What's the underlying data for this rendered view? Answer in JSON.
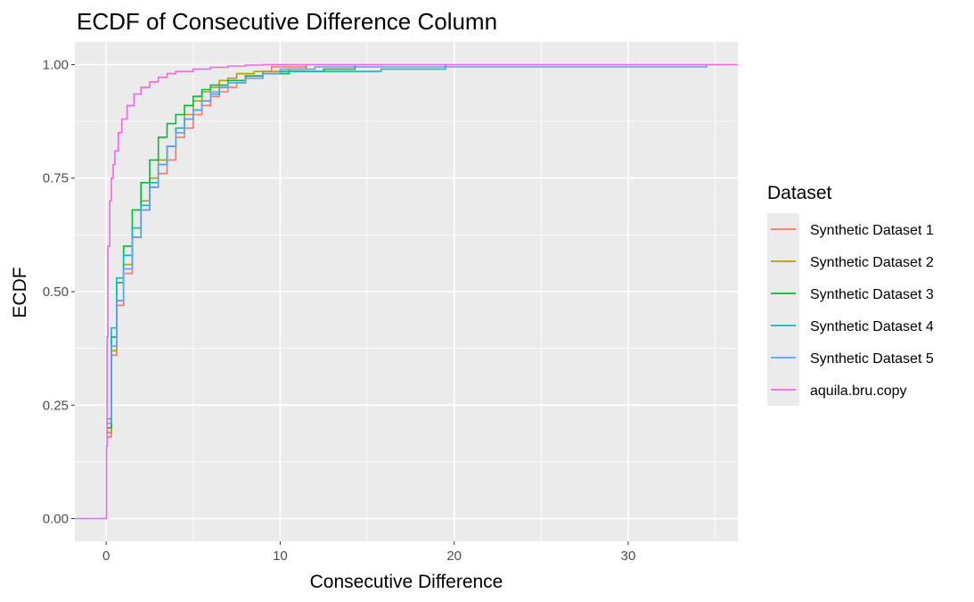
{
  "chart_data": {
    "type": "line",
    "subtype": "ecdf-step",
    "title": "ECDF of Consecutive Difference Column",
    "xlabel": "Consecutive Difference",
    "ylabel": "ECDF",
    "xlim": [
      -1.8,
      36.3
    ],
    "ylim": [
      -0.05,
      1.05
    ],
    "x_ticks": [
      0,
      10,
      20,
      30
    ],
    "x_tick_labels": [
      "0",
      "10",
      "20",
      "30"
    ],
    "y_ticks": [
      0,
      0.25,
      0.5,
      0.75,
      1.0
    ],
    "y_tick_labels": [
      "0.00",
      "0.25",
      "0.50",
      "0.75",
      "1.00"
    ],
    "grid": true,
    "panel_background": "#ebebeb",
    "legend": {
      "title": "Dataset",
      "position": "right"
    },
    "series": [
      {
        "name": "Synthetic Dataset 1",
        "color": "#F8766D",
        "points": [
          [
            0,
            0.18
          ],
          [
            0.3,
            0.36
          ],
          [
            0.6,
            0.47
          ],
          [
            1.0,
            0.54
          ],
          [
            1.5,
            0.62
          ],
          [
            2.0,
            0.68
          ],
          [
            2.5,
            0.73
          ],
          [
            3.0,
            0.76
          ],
          [
            3.5,
            0.79
          ],
          [
            4.0,
            0.84
          ],
          [
            4.5,
            0.86
          ],
          [
            5.0,
            0.89
          ],
          [
            5.5,
            0.91
          ],
          [
            6.0,
            0.93
          ],
          [
            6.5,
            0.94
          ],
          [
            7.0,
            0.95
          ],
          [
            7.5,
            0.96
          ],
          [
            8.0,
            0.975
          ],
          [
            9.0,
            0.985
          ],
          [
            9.5,
            0.995
          ],
          [
            11.5,
            1.0
          ]
        ]
      },
      {
        "name": "Synthetic Dataset 2",
        "color": "#B79F00",
        "points": [
          [
            0,
            0.19
          ],
          [
            0.3,
            0.37
          ],
          [
            0.6,
            0.48
          ],
          [
            1.0,
            0.56
          ],
          [
            1.5,
            0.64
          ],
          [
            2.0,
            0.7
          ],
          [
            2.5,
            0.75
          ],
          [
            3.0,
            0.79
          ],
          [
            3.5,
            0.82
          ],
          [
            4.0,
            0.86
          ],
          [
            4.5,
            0.89
          ],
          [
            5.0,
            0.92
          ],
          [
            5.5,
            0.94
          ],
          [
            6.0,
            0.95
          ],
          [
            6.5,
            0.965
          ],
          [
            7.0,
            0.97
          ],
          [
            7.5,
            0.98
          ],
          [
            8.5,
            0.985
          ],
          [
            10.5,
            0.99
          ],
          [
            11.5,
            1.0
          ]
        ]
      },
      {
        "name": "Synthetic Dataset 3",
        "color": "#00BA38",
        "points": [
          [
            0,
            0.2
          ],
          [
            0.3,
            0.4
          ],
          [
            0.6,
            0.52
          ],
          [
            1.0,
            0.6
          ],
          [
            1.5,
            0.68
          ],
          [
            2.0,
            0.74
          ],
          [
            2.5,
            0.79
          ],
          [
            3.0,
            0.84
          ],
          [
            3.5,
            0.87
          ],
          [
            4.0,
            0.89
          ],
          [
            4.5,
            0.91
          ],
          [
            5.0,
            0.93
          ],
          [
            5.5,
            0.945
          ],
          [
            6.0,
            0.955
          ],
          [
            7.0,
            0.965
          ],
          [
            8.0,
            0.975
          ],
          [
            9.0,
            0.98
          ],
          [
            10.5,
            0.985
          ],
          [
            12.5,
            0.99
          ],
          [
            14.3,
            1.0
          ]
        ]
      },
      {
        "name": "Synthetic Dataset 4",
        "color": "#00BFC4",
        "points": [
          [
            0,
            0.22
          ],
          [
            0.3,
            0.42
          ],
          [
            0.6,
            0.53
          ],
          [
            1.0,
            0.58
          ],
          [
            1.5,
            0.64
          ],
          [
            2.0,
            0.69
          ],
          [
            2.5,
            0.74
          ],
          [
            3.0,
            0.78
          ],
          [
            3.5,
            0.82
          ],
          [
            4.0,
            0.86
          ],
          [
            4.5,
            0.88
          ],
          [
            5.0,
            0.9
          ],
          [
            5.5,
            0.92
          ],
          [
            6.0,
            0.935
          ],
          [
            6.5,
            0.95
          ],
          [
            7.0,
            0.96
          ],
          [
            8.0,
            0.97
          ],
          [
            9.0,
            0.98
          ],
          [
            10.0,
            0.985
          ],
          [
            15.8,
            0.99
          ],
          [
            19.5,
            1.0
          ]
        ]
      },
      {
        "name": "Synthetic Dataset 5",
        "color": "#619CFF",
        "points": [
          [
            0,
            0.21
          ],
          [
            0.3,
            0.38
          ],
          [
            0.6,
            0.48
          ],
          [
            1.0,
            0.55
          ],
          [
            1.5,
            0.62
          ],
          [
            2.0,
            0.68
          ],
          [
            2.5,
            0.73
          ],
          [
            3.0,
            0.78
          ],
          [
            3.5,
            0.82
          ],
          [
            4.0,
            0.85
          ],
          [
            4.5,
            0.88
          ],
          [
            5.0,
            0.9
          ],
          [
            5.5,
            0.92
          ],
          [
            6.0,
            0.94
          ],
          [
            6.5,
            0.95
          ],
          [
            7.0,
            0.96
          ],
          [
            8.0,
            0.97
          ],
          [
            9.0,
            0.98
          ],
          [
            10.0,
            0.99
          ],
          [
            12.0,
            0.995
          ],
          [
            34.5,
            1.0
          ]
        ]
      },
      {
        "name": "aquila.bru.copy",
        "color": "#F564E3",
        "points": [
          [
            -1.8,
            0.0
          ],
          [
            0,
            0.0
          ],
          [
            0.02,
            0.16
          ],
          [
            0.05,
            0.4
          ],
          [
            0.1,
            0.6
          ],
          [
            0.2,
            0.7
          ],
          [
            0.3,
            0.75
          ],
          [
            0.4,
            0.78
          ],
          [
            0.5,
            0.81
          ],
          [
            0.7,
            0.85
          ],
          [
            0.9,
            0.88
          ],
          [
            1.2,
            0.91
          ],
          [
            1.6,
            0.935
          ],
          [
            2.0,
            0.95
          ],
          [
            2.5,
            0.962
          ],
          [
            3.0,
            0.972
          ],
          [
            3.5,
            0.98
          ],
          [
            4.0,
            0.985
          ],
          [
            5.0,
            0.99
          ],
          [
            6.0,
            0.994
          ],
          [
            7.0,
            0.997
          ],
          [
            8.0,
            0.999
          ],
          [
            9.0,
            1.0
          ],
          [
            36.3,
            1.0
          ]
        ]
      }
    ]
  }
}
